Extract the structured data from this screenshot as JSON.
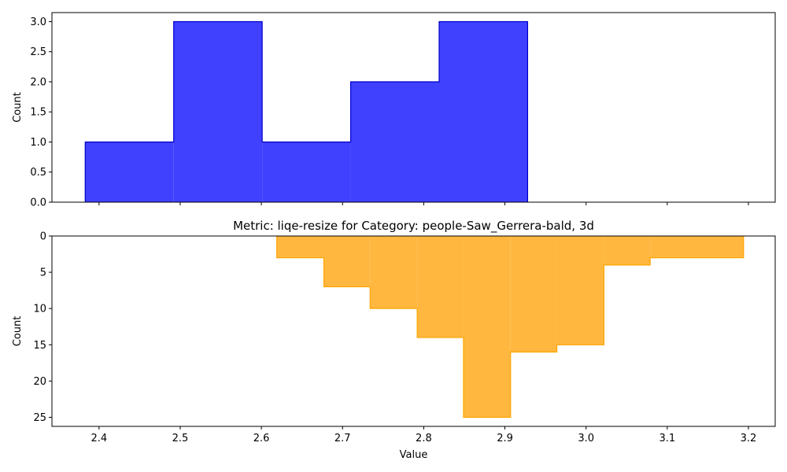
{
  "chart_data": [
    {
      "type": "histogram",
      "title": "",
      "xlabel": "",
      "ylabel": "Count",
      "xlim": [
        2.342,
        3.233
      ],
      "ylim": [
        0,
        3.15
      ],
      "y_ticks": [
        0.0,
        0.5,
        1.0,
        1.5,
        2.0,
        2.5,
        3.0
      ],
      "y_tick_labels": [
        "0.0",
        "0.5",
        "1.0",
        "1.5",
        "2.0",
        "2.5",
        "3.0"
      ],
      "x_ticks": [
        2.4,
        2.5,
        2.6,
        2.7,
        2.8,
        2.9,
        3.0,
        3.1,
        3.2
      ],
      "x_tick_labels_visible": false,
      "y_inverted": false,
      "bin_edges": [
        2.383,
        2.492,
        2.601,
        2.71,
        2.819,
        2.928
      ],
      "counts": [
        1,
        3,
        1,
        2,
        3
      ],
      "fill_color": "#4040ff",
      "edge_color": "#0000cc",
      "grid": false
    },
    {
      "type": "histogram",
      "title": "Metric: liqe-resize for Category: people-Saw_Gerrera-bald, 3d",
      "xlabel": "Value",
      "ylabel": "Count",
      "xlim": [
        2.342,
        3.233
      ],
      "ylim": [
        0,
        26.25
      ],
      "y_ticks": [
        0,
        5,
        10,
        15,
        20,
        25
      ],
      "y_tick_labels": [
        "0",
        "5",
        "10",
        "15",
        "20",
        "25"
      ],
      "x_ticks": [
        2.4,
        2.5,
        2.6,
        2.7,
        2.8,
        2.9,
        3.0,
        3.1,
        3.2
      ],
      "x_tick_labels": [
        "2.4",
        "2.5",
        "2.6",
        "2.7",
        "2.8",
        "2.9",
        "3.0",
        "3.1",
        "3.2"
      ],
      "x_tick_labels_visible": true,
      "y_inverted": true,
      "bin_edges": [
        2.619,
        2.677,
        2.734,
        2.792,
        2.849,
        2.907,
        2.964,
        3.022,
        3.079,
        3.137,
        3.194
      ],
      "counts": [
        3,
        7,
        10,
        14,
        25,
        16,
        15,
        4,
        3,
        3
      ],
      "fill_color": "#ffb73f",
      "edge_color": "#ffa500",
      "grid": false
    }
  ]
}
